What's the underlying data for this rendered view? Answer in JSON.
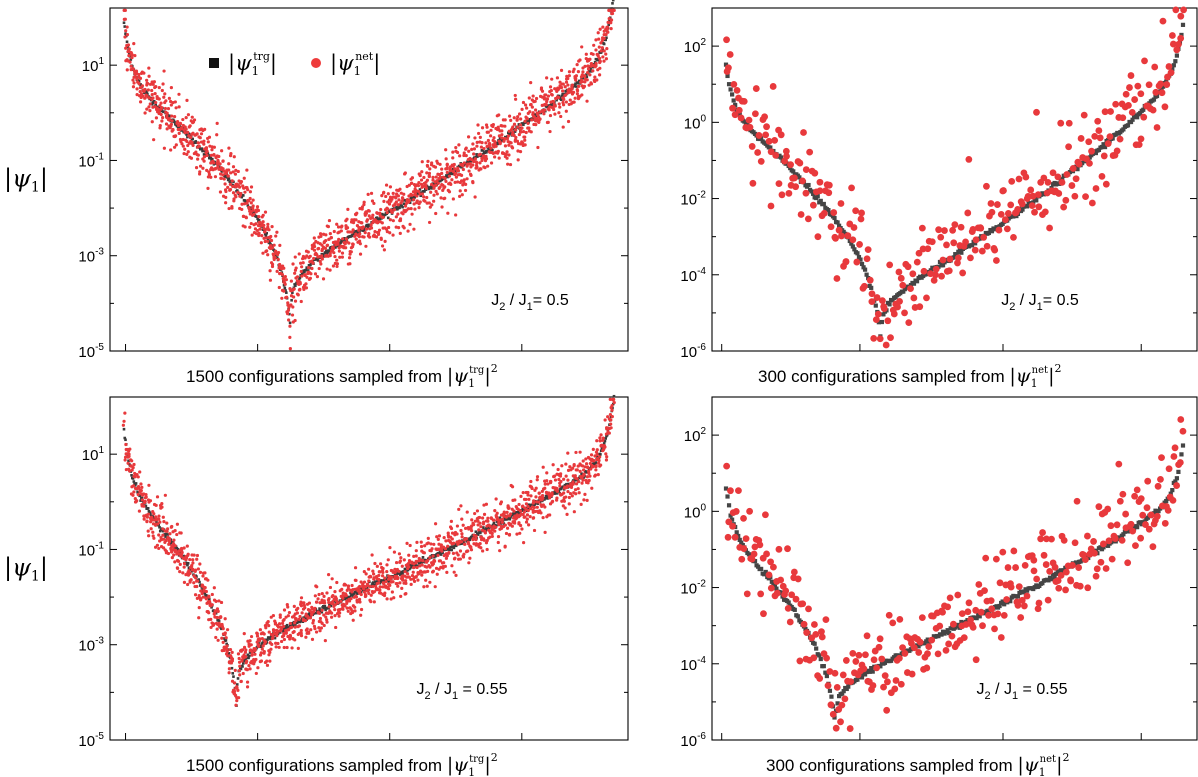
{
  "chart_data": [
    {
      "id": "panel-a",
      "type": "scatter",
      "ylabel": "|ψ1|",
      "xlabel": "1500 configurations sampled from",
      "xlabel_sup": "trg",
      "annotation": "J2 / J1= 0.5",
      "annotation_parts": {
        "a": "J",
        "asub": "2",
        "mid": " / J",
        "bsub": "1",
        "rest": "= 0.5"
      },
      "legend": {
        "items": [
          {
            "name": "|ψ1trg|",
            "marker": "square",
            "color": "#111111"
          },
          {
            "name": "|ψ1net|",
            "marker": "circle",
            "color": "#ee3b3b"
          }
        ],
        "placement": "top-left"
      },
      "y_scale": "log",
      "ylim_exp": [
        -5,
        2.2
      ],
      "y_ticks": [
        {
          "exp": 1,
          "label": "10",
          "sup": "1"
        },
        {
          "exp": -1,
          "label": "10",
          "sup": "-1"
        },
        {
          "exp": -3,
          "label": "10",
          "sup": "-3"
        },
        {
          "exp": -5,
          "label": "10",
          "sup": "-5"
        }
      ],
      "n_configs": 1500,
      "x_range": [
        0,
        1500
      ],
      "series": [
        {
          "kind": "target",
          "color": "#3a3a3a",
          "marker": "square",
          "size": 2.6,
          "count": 650,
          "curve": {
            "x_min_frac": 0.34,
            "ymin_exp": -4.3,
            "y_left_exp": 1.7,
            "y_right_exp": 2.2,
            "left_slope": 1.4,
            "right_slope": 1.2,
            "cusp": 0.35
          }
        },
        {
          "kind": "network",
          "color": "#e8393c",
          "marker": "circle",
          "size": 1.6,
          "count": 1500,
          "noise_exp": 0.28
        }
      ]
    },
    {
      "id": "panel-b",
      "type": "scatter",
      "xlabel": "300 configurations sampled from",
      "xlabel_sup": "net",
      "annotation": "J2 / J1= 0.5",
      "annotation_parts": {
        "a": "J",
        "asub": "2",
        "mid": " / J",
        "bsub": "1",
        "rest": "= 0.5"
      },
      "y_scale": "log",
      "ylim_exp": [
        -6,
        3
      ],
      "y_ticks": [
        {
          "exp": 2,
          "label": "10",
          "sup": "2"
        },
        {
          "exp": 0,
          "label": "10",
          "sup": "0"
        },
        {
          "exp": -2,
          "label": "10",
          "sup": "-2"
        },
        {
          "exp": -4,
          "label": "10",
          "sup": "-4"
        },
        {
          "exp": -6,
          "label": "10",
          "sup": "-6"
        }
      ],
      "n_configs": 300,
      "x_range": [
        0,
        300
      ],
      "series": [
        {
          "kind": "target",
          "color": "#454545",
          "marker": "square",
          "size": 4.2,
          "count": 300,
          "curve": {
            "x_min_frac": 0.34,
            "ymin_exp": -5.6,
            "y_left_exp": 1.3,
            "y_right_exp": 2.3,
            "left_slope": 1.3,
            "right_slope": 1.1,
            "cusp": 0.45
          }
        },
        {
          "kind": "network",
          "color": "#e8393c",
          "marker": "circle",
          "size": 3.4,
          "count": 300,
          "noise_exp": 0.55
        }
      ]
    },
    {
      "id": "panel-c",
      "type": "scatter",
      "ylabel": "|ψ1|",
      "xlabel": "1500 configurations sampled from",
      "xlabel_sup": "trg",
      "annotation": "J2 / J1 = 0.55",
      "annotation_parts": {
        "a": "J",
        "asub": "2",
        "mid": " / J",
        "bsub": "1",
        "rest": " = 0.55"
      },
      "y_scale": "log",
      "ylim_exp": [
        -5,
        2.2
      ],
      "y_ticks": [
        {
          "exp": 1,
          "label": "10",
          "sup": "1"
        },
        {
          "exp": -1,
          "label": "10",
          "sup": "-1"
        },
        {
          "exp": -3,
          "label": "10",
          "sup": "-3"
        },
        {
          "exp": -5,
          "label": "10",
          "sup": "-5"
        }
      ],
      "n_configs": 1500,
      "x_range": [
        0,
        1500
      ],
      "series": [
        {
          "kind": "target",
          "color": "#3a3a3a",
          "marker": "square",
          "size": 2.6,
          "count": 650,
          "curve": {
            "x_min_frac": 0.23,
            "ymin_exp": -4.1,
            "y_left_exp": 1.3,
            "y_right_exp": 1.9,
            "left_slope": 1.4,
            "right_slope": 1.1,
            "cusp": 0.35
          }
        },
        {
          "kind": "network",
          "color": "#e8393c",
          "marker": "circle",
          "size": 1.6,
          "count": 1500,
          "noise_exp": 0.24
        }
      ]
    },
    {
      "id": "panel-d",
      "type": "scatter",
      "xlabel": "300 configurations sampled from",
      "xlabel_sup": "net",
      "annotation": "J2 / J1 = 0.55",
      "annotation_parts": {
        "a": "J",
        "asub": "2",
        "mid": " / J",
        "bsub": "1",
        "rest": " = 0.55"
      },
      "y_scale": "log",
      "ylim_exp": [
        -6,
        3
      ],
      "y_ticks": [
        {
          "exp": 2,
          "label": "10",
          "sup": "2"
        },
        {
          "exp": 0,
          "label": "10",
          "sup": "0"
        },
        {
          "exp": -2,
          "label": "10",
          "sup": "-2"
        },
        {
          "exp": -4,
          "label": "10",
          "sup": "-4"
        },
        {
          "exp": -6,
          "label": "10",
          "sup": "-6"
        }
      ],
      "n_configs": 300,
      "x_range": [
        0,
        300
      ],
      "series": [
        {
          "kind": "target",
          "color": "#454545",
          "marker": "square",
          "size": 4.2,
          "count": 300,
          "curve": {
            "x_min_frac": 0.24,
            "ymin_exp": -5.5,
            "y_left_exp": 0.4,
            "y_right_exp": 1.4,
            "left_slope": 1.5,
            "right_slope": 1.1,
            "cusp": 0.45
          }
        },
        {
          "kind": "network",
          "color": "#e8393c",
          "marker": "circle",
          "size": 3.4,
          "count": 300,
          "noise_exp": 0.5
        }
      ]
    }
  ]
}
